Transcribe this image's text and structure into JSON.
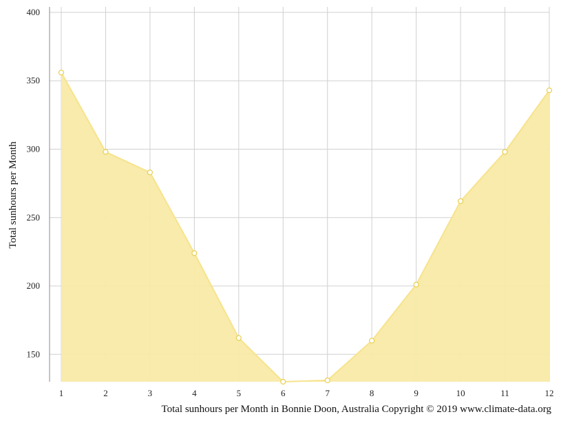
{
  "chart_data": {
    "type": "area",
    "x": [
      1,
      2,
      3,
      4,
      5,
      6,
      7,
      8,
      9,
      10,
      11,
      12
    ],
    "series": [
      {
        "values": [
          356,
          298,
          283,
          224,
          162,
          130,
          131,
          160,
          201,
          262,
          298,
          343
        ]
      }
    ],
    "ylabel": "Total sunhours per Month",
    "caption": "Total sunhours per Month in Bonnie Doon, Australia Copyright © 2019 www.climate-data.org",
    "xlim": [
      1,
      12
    ],
    "ylim": [
      130,
      404
    ],
    "yticks": [
      150,
      200,
      250,
      300,
      350,
      400
    ],
    "xticks": [
      1,
      2,
      3,
      4,
      5,
      6,
      7,
      8,
      9,
      10,
      11,
      12
    ],
    "grid": true,
    "colors": {
      "line": "#f7e38c",
      "fill": "#f8eaa6",
      "marker_stroke": "#e8cf4d",
      "grid": "#d0d0d0",
      "axis": "#888888"
    }
  }
}
